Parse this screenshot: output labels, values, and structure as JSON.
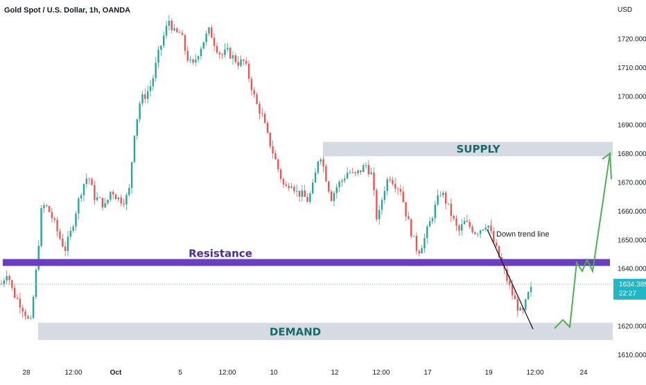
{
  "chart_data": {
    "type": "candlestick",
    "title": "Gold Spot / U.S. Dollar, 1h, OANDA",
    "currency": "USD",
    "y_ticks": [
      1610,
      1620,
      1630,
      1640,
      1650,
      1660,
      1670,
      1680,
      1690,
      1700,
      1710,
      1720
    ],
    "y_tick_labels": [
      "1610.000",
      "1620.000",
      "1630.000",
      "1640.000",
      "1650.000",
      "1660.000",
      "1670.000",
      "1680.000",
      "1690.000",
      "1700.000",
      "1710.000",
      "1720.000"
    ],
    "ylim": [
      1609,
      1731
    ],
    "x_ticks": [
      "28",
      "12:00",
      "Oct",
      "5",
      "12:00",
      "10",
      "12",
      "12:00",
      "17",
      "19",
      "12:00",
      "24"
    ],
    "price_path": [
      [
        1633,
        1636
      ],
      [
        1637,
        1641
      ],
      [
        1629,
        1634
      ],
      [
        1627,
        1630
      ],
      [
        1623,
        1627
      ],
      [
        1618,
        1622
      ],
      [
        1636,
        1642
      ],
      [
        1660,
        1664
      ],
      [
        1660,
        1662
      ],
      [
        1654,
        1659
      ],
      [
        1649,
        1653
      ],
      [
        1645,
        1648
      ],
      [
        1650,
        1655
      ],
      [
        1659,
        1663
      ],
      [
        1667,
        1670
      ],
      [
        1671,
        1674
      ],
      [
        1663,
        1667
      ],
      [
        1662,
        1665
      ],
      [
        1660,
        1663
      ],
      [
        1666,
        1669
      ],
      [
        1663,
        1666
      ],
      [
        1662,
        1665
      ],
      [
        1664,
        1667
      ],
      [
        1685,
        1690
      ],
      [
        1697,
        1700
      ],
      [
        1699,
        1702
      ],
      [
        1703,
        1706
      ],
      [
        1712,
        1715
      ],
      [
        1719,
        1722
      ],
      [
        1725,
        1728
      ],
      [
        1720,
        1723
      ],
      [
        1720,
        1724
      ],
      [
        1712,
        1716
      ],
      [
        1708,
        1712
      ],
      [
        1713,
        1717
      ],
      [
        1718,
        1721
      ],
      [
        1721,
        1725
      ],
      [
        1716,
        1719
      ],
      [
        1712,
        1716
      ],
      [
        1714,
        1717
      ],
      [
        1712,
        1715
      ],
      [
        1710,
        1713
      ],
      [
        1711,
        1713
      ],
      [
        1703,
        1707
      ],
      [
        1696,
        1699
      ],
      [
        1692,
        1695
      ],
      [
        1684,
        1688
      ],
      [
        1678,
        1682
      ],
      [
        1672,
        1675
      ],
      [
        1666,
        1669
      ],
      [
        1669,
        1672
      ],
      [
        1665,
        1668
      ],
      [
        1664,
        1667
      ],
      [
        1662,
        1665
      ],
      [
        1668,
        1671
      ],
      [
        1680,
        1682
      ],
      [
        1671,
        1674
      ],
      [
        1663,
        1666
      ],
      [
        1667,
        1670
      ],
      [
        1670,
        1672
      ],
      [
        1673,
        1675
      ],
      [
        1671,
        1673
      ],
      [
        1673,
        1675
      ],
      [
        1675,
        1677
      ],
      [
        1671,
        1674
      ],
      [
        1654,
        1657
      ],
      [
        1665,
        1668
      ],
      [
        1671,
        1674
      ],
      [
        1668,
        1671
      ],
      [
        1666,
        1669
      ],
      [
        1657,
        1660
      ],
      [
        1650,
        1653
      ],
      [
        1644,
        1647
      ],
      [
        1648,
        1651
      ],
      [
        1654,
        1657
      ],
      [
        1660,
        1663
      ],
      [
        1666,
        1668
      ],
      [
        1661,
        1664
      ],
      [
        1656,
        1659
      ],
      [
        1651,
        1654
      ],
      [
        1655,
        1657
      ],
      [
        1653,
        1656
      ],
      [
        1651,
        1654
      ],
      [
        1653,
        1655
      ],
      [
        1655,
        1657
      ],
      [
        1648,
        1651
      ],
      [
        1643,
        1645
      ],
      [
        1637,
        1640
      ],
      [
        1631,
        1634
      ],
      [
        1626,
        1629
      ],
      [
        1622,
        1625
      ],
      [
        1629,
        1632
      ],
      [
        1633,
        1635
      ]
    ],
    "current_price": "1634.385",
    "countdown": "22:27",
    "annotations": {
      "supply_label": "SUPPLY",
      "supply_zone": [
        1679,
        1684
      ],
      "resistance_label": "Resistance",
      "resistance_level": 1642,
      "demand_label": "DEMAND",
      "demand_zone": [
        1615,
        1621
      ],
      "trendline_label": "Down trend line"
    },
    "colors": {
      "up": "#26a69a",
      "down": "#ef5350",
      "zone_fill": "#cfd5de",
      "resistance": "#6a3fbf",
      "supply_text": "#136c6c",
      "resistance_text": "#4a2f9a",
      "arrow": "#4caf50",
      "price_label_bg": "#22b7c7",
      "current_line": "#8bc58f"
    }
  }
}
